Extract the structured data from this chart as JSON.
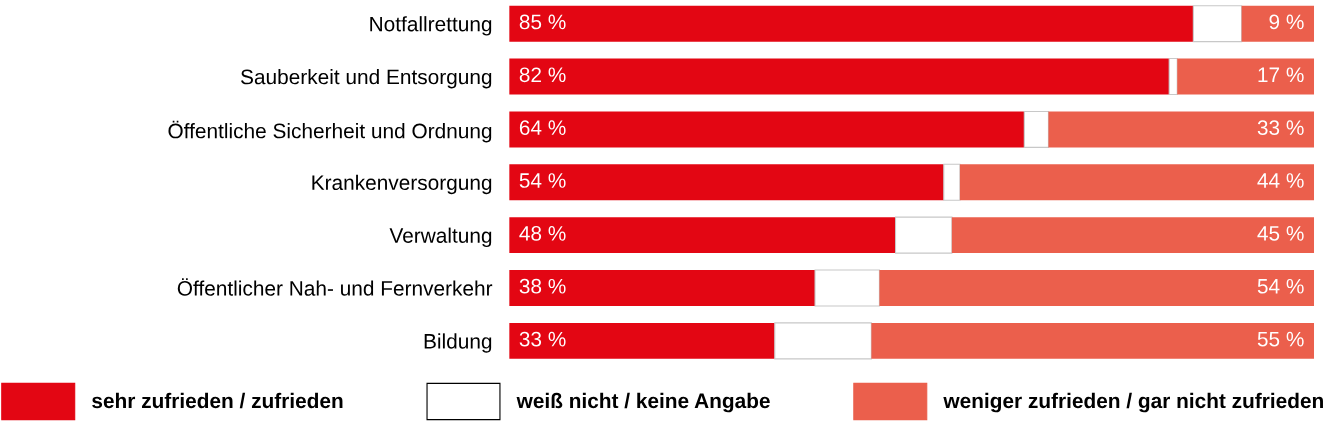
{
  "chart_data": {
    "type": "bar",
    "orientation": "horizontal",
    "stacked": true,
    "legend": "bottom",
    "categories": [
      "Notfallrettung",
      "Sauberkeit und Entsorgung",
      "Öffentliche Sicherheit und Ordnung",
      "Krankenversorgung",
      "Verwaltung",
      "Öffentlicher Nah- und Fernverkehr",
      "Bildung"
    ],
    "series": [
      {
        "name": "sehr zufrieden / zufrieden",
        "color": "#e30613",
        "values": [
          85,
          82,
          64,
          54,
          48,
          38,
          33
        ],
        "value_labels": [
          "85 %",
          "82 %",
          "64 %",
          "54 %",
          "48 %",
          "38 %",
          "33 %"
        ]
      },
      {
        "name": "weiß nicht / keine Angabe",
        "color": "#ffffff",
        "values": [
          6,
          1,
          3,
          2,
          7,
          8,
          12
        ]
      },
      {
        "name": "weniger zufrieden / gar nicht zufrieden",
        "color": "#eb5f4c",
        "values": [
          9,
          17,
          33,
          44,
          45,
          54,
          55
        ],
        "value_labels": [
          "9 %",
          "17 %",
          "33 %",
          "44 %",
          "45 %",
          "54 %",
          "55 %"
        ]
      }
    ]
  }
}
